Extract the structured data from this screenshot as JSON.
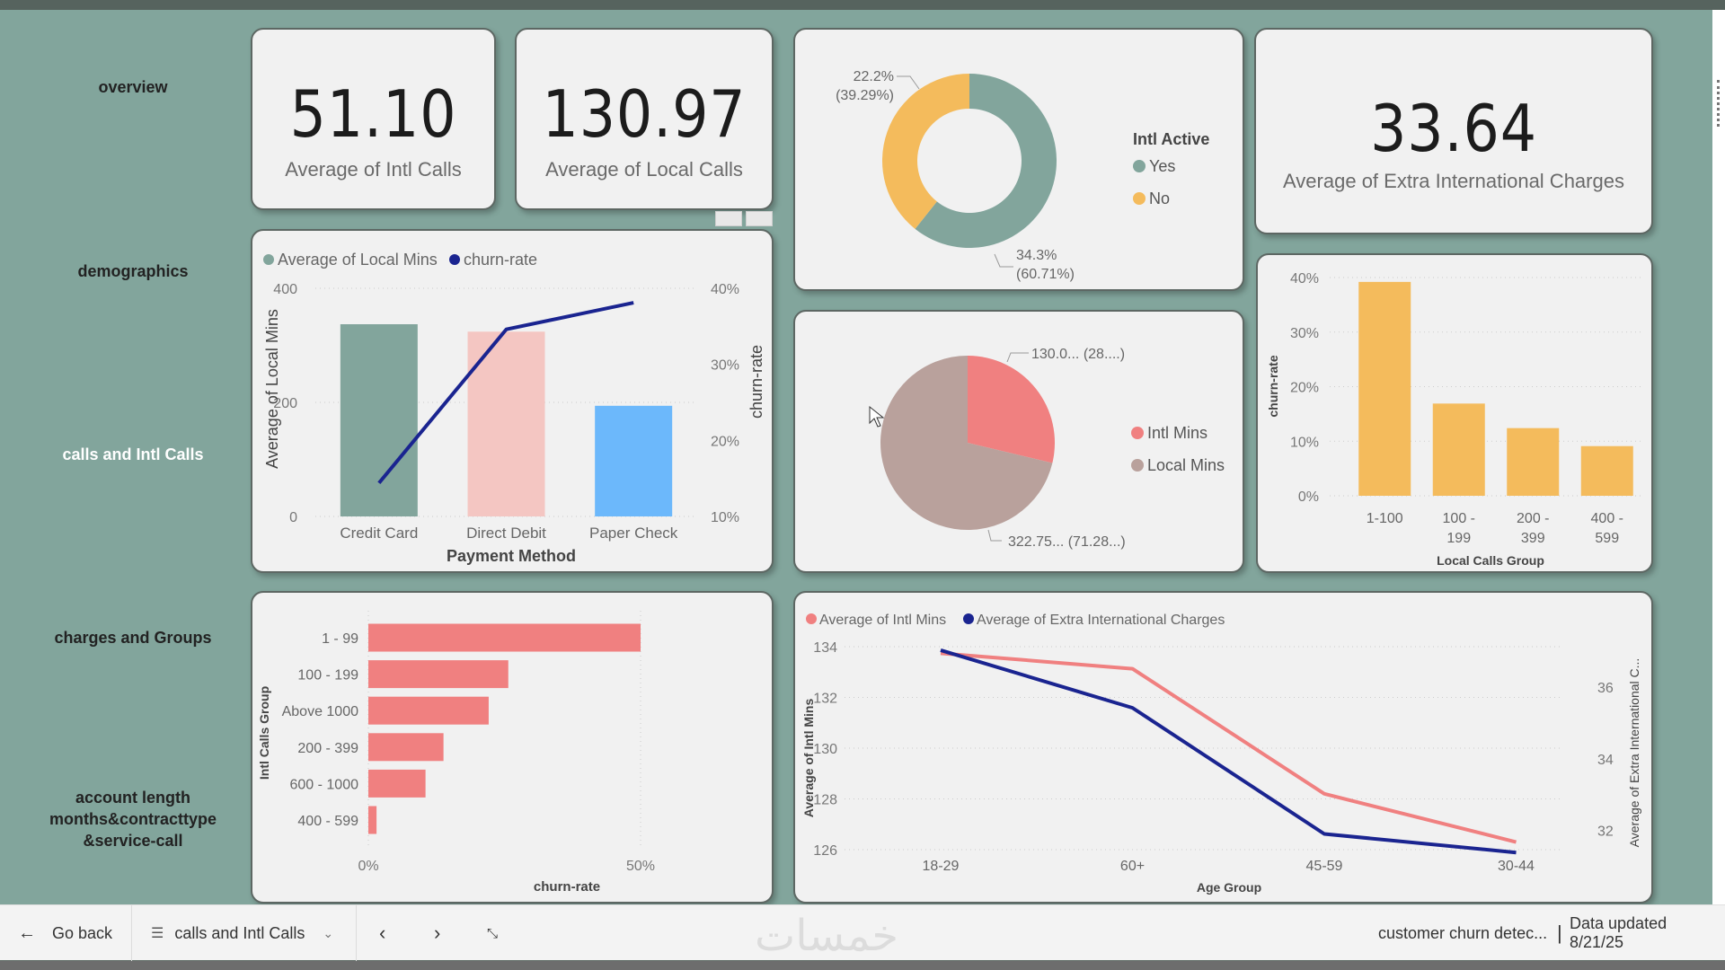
{
  "nav": {
    "items": [
      {
        "label": "overview",
        "active": false
      },
      {
        "label": "demographics",
        "active": false
      },
      {
        "label": "calls and Intl Calls",
        "active": true
      },
      {
        "label": "charges and Groups",
        "active": false
      },
      {
        "label": "account length months&contracttype &service-call",
        "active": false
      }
    ]
  },
  "kpis": {
    "intl_calls": {
      "value": "51.10",
      "label": "Average of Intl Calls"
    },
    "local_calls": {
      "value": "130.97",
      "label": "Average of Local Calls"
    },
    "extra_intl_charges": {
      "value": "33.64",
      "label": "Average of Extra International Charges"
    }
  },
  "colors": {
    "teal": "#82a59c",
    "amber": "#f4bb5c",
    "salmon": "#f08080",
    "pink_light": "#f4c6c2",
    "sky": "#6cb8fb",
    "navy": "#1a2490",
    "taupe": "#b9a19c"
  },
  "chart_data": [
    {
      "id": "intl_active_donut",
      "type": "pie",
      "variant": "donut",
      "title": "",
      "legend_title": "Intl Active",
      "legend_position": "right",
      "categories": [
        "Yes",
        "No"
      ],
      "values": [
        34.3,
        22.2
      ],
      "shares_pct": [
        60.71,
        39.29
      ],
      "data_labels": [
        "34.3%\n(60.71%)",
        "22.2%\n(39.29%)"
      ],
      "colors": [
        "#82a59c",
        "#f4bb5c"
      ]
    },
    {
      "id": "payment_method_combo",
      "type": "bar",
      "variant": "combo bar + line",
      "categories": [
        "Credit Card",
        "Direct Debit",
        "Paper Check"
      ],
      "series": [
        {
          "name": "Average of Local Mins",
          "type": "bar",
          "axis": "left",
          "values": [
            337,
            324,
            194
          ],
          "colors": [
            "#82a59c",
            "#f4c6c2",
            "#6cb8fb"
          ]
        },
        {
          "name": "churn-rate",
          "type": "line",
          "axis": "right",
          "values": [
            14.4,
            34.6,
            38.1
          ],
          "unit": "%",
          "color": "#1a2490"
        }
      ],
      "xlabel": "Payment Method",
      "ylabel": "Average of Local Mins",
      "y2label": "churn-rate",
      "ylim": [
        0,
        400
      ],
      "yticks": [
        "0",
        "200",
        "400"
      ],
      "y2lim": [
        10,
        40
      ],
      "y2ticks": [
        "10%",
        "20%",
        "30%",
        "40%"
      ],
      "legend_position": "top-left",
      "grid": true
    },
    {
      "id": "mins_pie",
      "type": "pie",
      "categories": [
        "Intl Mins",
        "Local Mins"
      ],
      "values": [
        130.0,
        322.75
      ],
      "shares_pct": [
        28.72,
        71.28
      ],
      "data_labels": [
        "130.0... (28....)",
        "322.75... (71.28...)"
      ],
      "colors": [
        "#f08080",
        "#b9a19c"
      ],
      "legend_position": "right"
    },
    {
      "id": "local_calls_group_churn",
      "type": "bar",
      "categories": [
        "1-100",
        "100 - 199",
        "200 - 399",
        "400 - 599"
      ],
      "values": [
        39.2,
        16.9,
        12.4,
        9.1
      ],
      "unit": "%",
      "xlabel": "Local Calls Group",
      "ylabel": "churn-rate",
      "ylim": [
        0,
        40
      ],
      "yticks": [
        "0%",
        "10%",
        "20%",
        "30%",
        "40%"
      ],
      "color": "#f4bb5c",
      "grid": true
    },
    {
      "id": "intl_calls_group_churn",
      "type": "bar",
      "orientation": "horizontal",
      "categories": [
        "1 - 99",
        "100 - 199",
        "Above 1000",
        "200 - 399",
        "600 - 1000",
        "400 - 599"
      ],
      "values": [
        50.0,
        25.7,
        22.1,
        13.8,
        10.5,
        1.5
      ],
      "unit": "%",
      "xlabel": "churn-rate",
      "ylabel": "Intl Calls Group",
      "xlim": [
        0,
        50
      ],
      "xticks": [
        "0%",
        "50%"
      ],
      "color": "#f08080",
      "grid": true
    },
    {
      "id": "age_group_lines",
      "type": "line",
      "categories": [
        "18-29",
        "60+",
        "45-59",
        "30-44"
      ],
      "series": [
        {
          "name": "Average of Intl Mins",
          "axis": "left",
          "values": [
            133.74,
            133.13,
            128.2,
            126.3
          ],
          "color": "#f08080"
        },
        {
          "name": "Average of Extra International Charges",
          "axis": "right",
          "values": [
            37.03,
            35.42,
            31.9,
            31.38
          ],
          "color": "#1a2490"
        }
      ],
      "xlabel": "Age Group",
      "ylabel": "Average of Intl Mins",
      "y2label": "Average of Extra International C...",
      "ylim": [
        126,
        134
      ],
      "yticks": [
        "126",
        "128",
        "130",
        "132",
        "134"
      ],
      "y2lim": [
        31,
        37
      ],
      "y2ticks": [
        "32",
        "34",
        "36"
      ],
      "legend_position": "top-left",
      "grid": true
    }
  ],
  "footer": {
    "go_back": "Go back",
    "page_selector": "calls and Intl Calls",
    "report_name": "customer churn detec...",
    "separator": "|",
    "data_updated": "Data updated 8/21/25",
    "watermark": "خمسات"
  }
}
